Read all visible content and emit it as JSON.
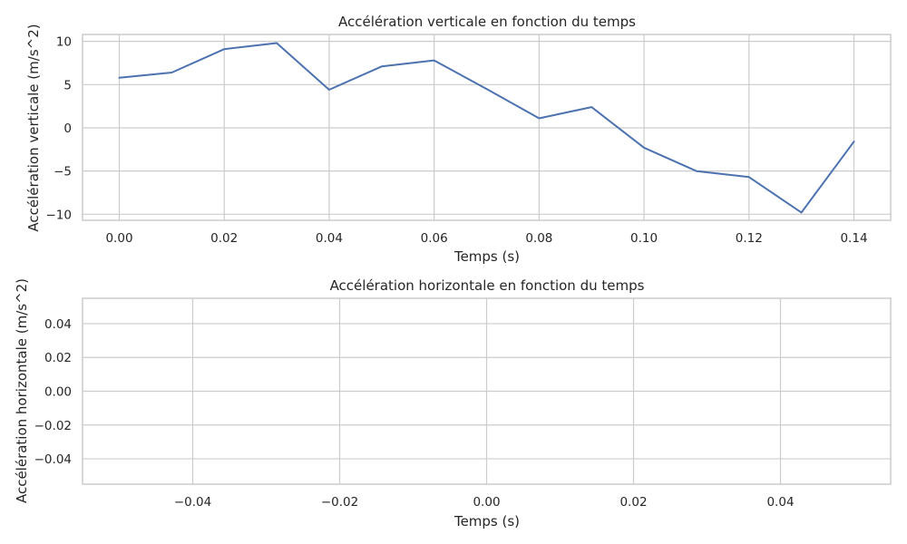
{
  "chart_data": [
    {
      "type": "line",
      "title": "Accélération verticale en fonction du temps",
      "xlabel": "Temps (s)",
      "ylabel": "Accélération verticale (m/s^2)",
      "xlim": [
        -0.007,
        0.147
      ],
      "ylim": [
        -10.7,
        10.8
      ],
      "xticks": [
        0.0,
        0.02,
        0.04,
        0.06,
        0.08,
        0.1,
        0.12,
        0.14
      ],
      "xtick_labels": [
        "0.00",
        "0.02",
        "0.04",
        "0.06",
        "0.08",
        "0.10",
        "0.12",
        "0.14"
      ],
      "yticks": [
        -10,
        -5,
        0,
        5,
        10
      ],
      "ytick_labels": [
        "−10",
        "−5",
        "0",
        "5",
        "10"
      ],
      "grid": true,
      "series": [
        {
          "color": "#4c72b0",
          "x": [
            0.0,
            0.01,
            0.02,
            0.03,
            0.04,
            0.05,
            0.06,
            0.07,
            0.08,
            0.09,
            0.1,
            0.11,
            0.12,
            0.13,
            0.14
          ],
          "y": [
            5.8,
            6.4,
            9.1,
            9.8,
            4.4,
            7.1,
            7.8,
            4.5,
            1.1,
            2.4,
            -2.3,
            -5.0,
            -5.7,
            -9.8,
            -1.6
          ]
        }
      ]
    },
    {
      "type": "line",
      "title": "Accélération horizontale en fonction du temps",
      "xlabel": "Temps (s)",
      "ylabel": "Accélération horizontale (m/s^2)",
      "xlim": [
        -0.055,
        0.055
      ],
      "ylim": [
        -0.055,
        0.055
      ],
      "xticks": [
        -0.04,
        -0.02,
        0.0,
        0.02,
        0.04
      ],
      "xtick_labels": [
        "−0.04",
        "−0.02",
        "0.00",
        "0.02",
        "0.04"
      ],
      "yticks": [
        -0.04,
        -0.02,
        0.0,
        0.02,
        0.04
      ],
      "ytick_labels": [
        "−0.04",
        "−0.02",
        "0.00",
        "0.02",
        "0.04"
      ],
      "grid": true,
      "series": []
    }
  ]
}
